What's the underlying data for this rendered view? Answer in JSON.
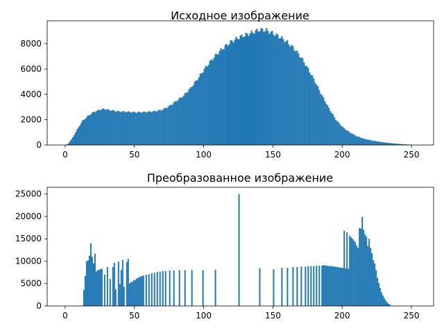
{
  "figure": {
    "bar_color": "#1f77b4"
  },
  "chart_data": [
    {
      "type": "histogram",
      "title": "Исходное изображение",
      "xlabel": "",
      "ylabel": "",
      "xlim": [
        -13,
        266
      ],
      "ylim": [
        0,
        9800
      ],
      "xticks": [
        0,
        50,
        100,
        150,
        200,
        250
      ],
      "yticks": [
        0,
        2000,
        4000,
        6000,
        8000
      ],
      "bins": 256,
      "profile_anchors": [
        [
          0,
          0
        ],
        [
          2,
          150
        ],
        [
          5,
          600
        ],
        [
          8,
          1200
        ],
        [
          12,
          1900
        ],
        [
          16,
          2300
        ],
        [
          20,
          2600
        ],
        [
          25,
          2800
        ],
        [
          28,
          2850
        ],
        [
          32,
          2750
        ],
        [
          38,
          2650
        ],
        [
          45,
          2620
        ],
        [
          50,
          2580
        ],
        [
          55,
          2600
        ],
        [
          60,
          2620
        ],
        [
          65,
          2680
        ],
        [
          70,
          2800
        ],
        [
          75,
          3100
        ],
        [
          80,
          3500
        ],
        [
          85,
          3900
        ],
        [
          90,
          4500
        ],
        [
          95,
          5200
        ],
        [
          100,
          6000
        ],
        [
          105,
          6700
        ],
        [
          110,
          7300
        ],
        [
          115,
          7800
        ],
        [
          120,
          8200
        ],
        [
          125,
          8500
        ],
        [
          130,
          8700
        ],
        [
          135,
          8900
        ],
        [
          140,
          9100
        ],
        [
          145,
          9050
        ],
        [
          150,
          8800
        ],
        [
          155,
          8500
        ],
        [
          160,
          8100
        ],
        [
          165,
          7600
        ],
        [
          170,
          6900
        ],
        [
          175,
          6000
        ],
        [
          180,
          5000
        ],
        [
          185,
          3900
        ],
        [
          190,
          2900
        ],
        [
          195,
          2000
        ],
        [
          200,
          1400
        ],
        [
          205,
          1000
        ],
        [
          210,
          700
        ],
        [
          215,
          500
        ],
        [
          220,
          380
        ],
        [
          225,
          280
        ],
        [
          230,
          200
        ],
        [
          235,
          140
        ],
        [
          240,
          90
        ],
        [
          245,
          50
        ],
        [
          250,
          20
        ],
        [
          252,
          5
        ],
        [
          255,
          0
        ]
      ]
    },
    {
      "type": "histogram",
      "title": "Преобразованное изображение",
      "xlabel": "",
      "ylabel": "",
      "xlim": [
        -13,
        266
      ],
      "ylim": [
        0,
        26500
      ],
      "xticks": [
        0,
        50,
        100,
        150,
        200,
        250
      ],
      "yticks": [
        0,
        5000,
        10000,
        15000,
        20000,
        25000
      ],
      "bins": 256,
      "nonzero_bins": [
        [
          13,
          3600
        ],
        [
          14,
          6700
        ],
        [
          15,
          10000
        ],
        [
          16,
          10200
        ],
        [
          17,
          11200
        ],
        [
          18,
          14000
        ],
        [
          19,
          11000
        ],
        [
          20,
          9500
        ],
        [
          21,
          11700
        ],
        [
          22,
          7700
        ],
        [
          23,
          8000
        ],
        [
          24,
          8100
        ],
        [
          25,
          8200
        ],
        [
          26,
          8300
        ],
        [
          28,
          7000
        ],
        [
          30,
          8700
        ],
        [
          32,
          6000
        ],
        [
          34,
          8700
        ],
        [
          35,
          9600
        ],
        [
          36,
          3700
        ],
        [
          38,
          9900
        ],
        [
          39,
          4900
        ],
        [
          40,
          8000
        ],
        [
          41,
          10300
        ],
        [
          42,
          4300
        ],
        [
          44,
          9800
        ],
        [
          45,
          10500
        ],
        [
          46,
          5000
        ],
        [
          47,
          5300
        ],
        [
          48,
          5400
        ],
        [
          49,
          5700
        ],
        [
          50,
          5800
        ],
        [
          51,
          6100
        ],
        [
          52,
          6300
        ],
        [
          53,
          6400
        ],
        [
          54,
          6600
        ],
        [
          55,
          6700
        ],
        [
          56,
          6800
        ],
        [
          58,
          7000
        ],
        [
          60,
          7100
        ],
        [
          62,
          7300
        ],
        [
          64,
          7400
        ],
        [
          66,
          7600
        ],
        [
          68,
          7700
        ],
        [
          70,
          7800
        ],
        [
          72,
          7800
        ],
        [
          75,
          7900
        ],
        [
          78,
          7900
        ],
        [
          82,
          8000
        ],
        [
          86,
          8000
        ],
        [
          91,
          8000
        ],
        [
          99,
          8000
        ],
        [
          108,
          8100
        ],
        [
          125,
          25000
        ],
        [
          140,
          8400
        ],
        [
          150,
          8200
        ],
        [
          156,
          8500
        ],
        [
          160,
          8500
        ],
        [
          164,
          8700
        ],
        [
          167,
          8700
        ],
        [
          170,
          8800
        ],
        [
          173,
          8800
        ],
        [
          175,
          8900
        ],
        [
          177,
          8900
        ],
        [
          179,
          8900
        ],
        [
          181,
          9000
        ],
        [
          183,
          9000
        ],
        [
          185,
          9000
        ],
        [
          186,
          9100
        ],
        [
          187,
          9100
        ],
        [
          188,
          9000
        ],
        [
          189,
          9000
        ],
        [
          190,
          8900
        ],
        [
          191,
          8900
        ],
        [
          192,
          8900
        ],
        [
          193,
          8800
        ],
        [
          194,
          8800
        ],
        [
          195,
          8700
        ],
        [
          196,
          8700
        ],
        [
          197,
          8600
        ],
        [
          198,
          8600
        ],
        [
          199,
          8500
        ],
        [
          200,
          8500
        ],
        [
          201,
          16800
        ],
        [
          202,
          8400
        ],
        [
          203,
          16400
        ],
        [
          204,
          8300
        ],
        [
          205,
          15700
        ],
        [
          206,
          15300
        ],
        [
          207,
          15000
        ],
        [
          208,
          14600
        ],
        [
          209,
          14200
        ],
        [
          210,
          13500
        ],
        [
          211,
          13000
        ],
        [
          212,
          17400
        ],
        [
          213,
          17300
        ],
        [
          214,
          19900
        ],
        [
          215,
          17000
        ],
        [
          216,
          16000
        ],
        [
          217,
          15500
        ],
        [
          218,
          13400
        ],
        [
          219,
          15000
        ],
        [
          220,
          13000
        ],
        [
          221,
          11800
        ],
        [
          222,
          10200
        ],
        [
          223,
          9500
        ],
        [
          224,
          8000
        ],
        [
          225,
          6300
        ],
        [
          226,
          5100
        ],
        [
          227,
          4000
        ],
        [
          228,
          3000
        ],
        [
          229,
          2300
        ],
        [
          230,
          1700
        ],
        [
          231,
          1200
        ],
        [
          232,
          800
        ],
        [
          233,
          500
        ],
        [
          234,
          300
        ]
      ]
    }
  ]
}
